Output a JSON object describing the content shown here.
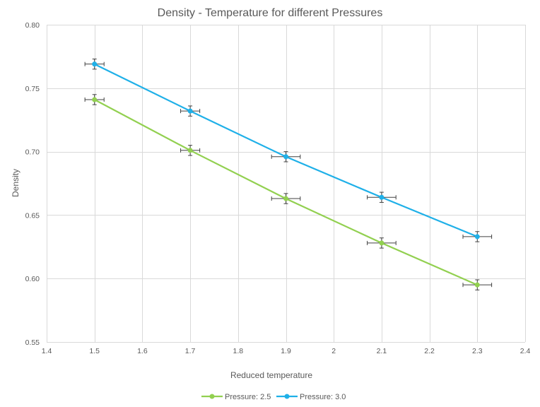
{
  "chart_data": {
    "type": "scatter",
    "title": "Density - Temperature for different Pressures",
    "xlabel": "Reduced temperature",
    "ylabel": "Density",
    "xlim": [
      1.4,
      2.4
    ],
    "ylim": [
      0.55,
      0.8
    ],
    "xticks": [
      1.4,
      1.5,
      1.6,
      1.7,
      1.8,
      1.9,
      2.0,
      2.1,
      2.2,
      2.3,
      2.4
    ],
    "xtick_labels": [
      "1.4",
      "1.5",
      "1.6",
      "1.7",
      "1.8",
      "1.9",
      "2",
      "2.1",
      "2.2",
      "2.3",
      "2.4"
    ],
    "yticks": [
      0.55,
      0.6,
      0.65,
      0.7,
      0.75,
      0.8
    ],
    "ytick_labels": [
      "0.55",
      "0.60",
      "0.65",
      "0.70",
      "0.75",
      "0.80"
    ],
    "grid": true,
    "legend_position": "bottom",
    "series": [
      {
        "name": "Pressure: 2.5",
        "color": "#92d050",
        "x": [
          1.5,
          1.7,
          1.9,
          2.1,
          2.3
        ],
        "y": [
          0.741,
          0.701,
          0.663,
          0.628,
          0.595
        ],
        "x_err": [
          0.02,
          0.02,
          0.03,
          0.03,
          0.03
        ],
        "y_err": [
          0.004,
          0.004,
          0.004,
          0.004,
          0.004
        ]
      },
      {
        "name": "Pressure: 3.0",
        "color": "#1fb0e8",
        "x": [
          1.5,
          1.7,
          1.9,
          2.1,
          2.3
        ],
        "y": [
          0.769,
          0.732,
          0.696,
          0.664,
          0.633
        ],
        "x_err": [
          0.02,
          0.02,
          0.03,
          0.03,
          0.03
        ],
        "y_err": [
          0.004,
          0.004,
          0.004,
          0.004,
          0.004
        ]
      }
    ]
  }
}
